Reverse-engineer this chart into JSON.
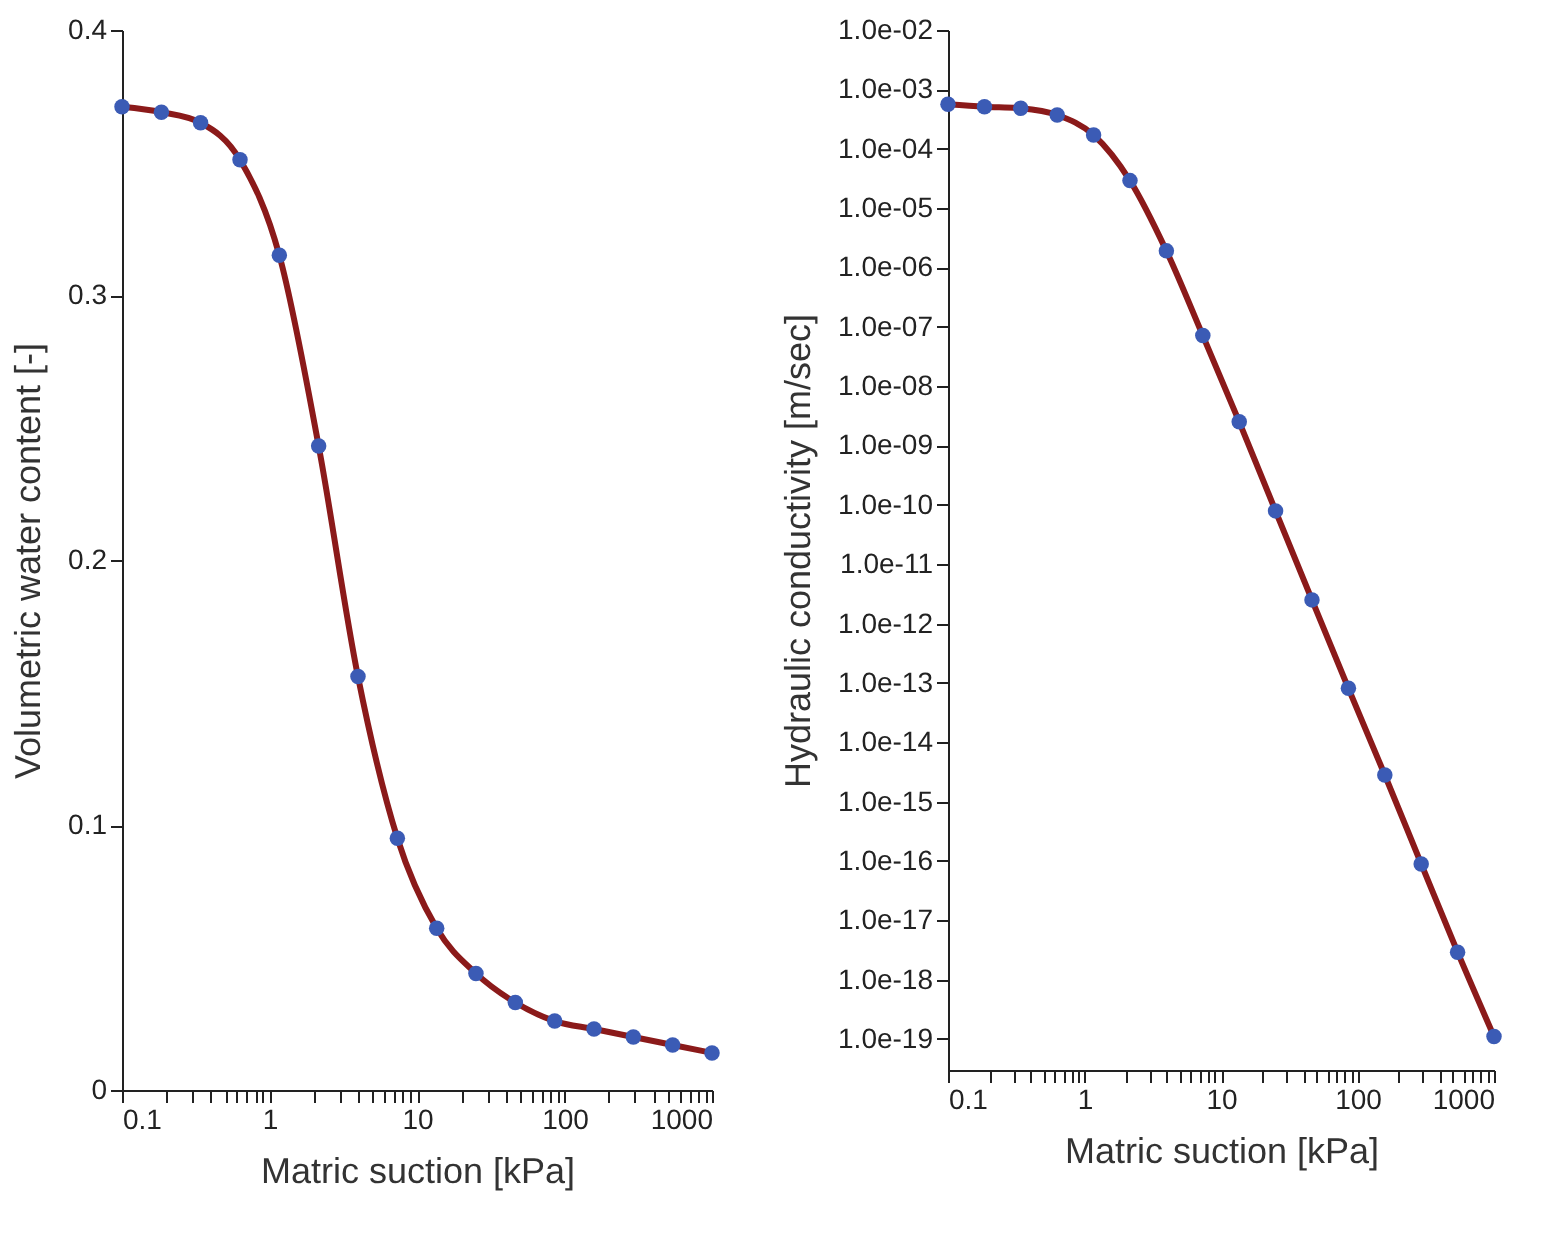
{
  "chart_data": [
    {
      "type": "line",
      "xlabel": "Matric suction [kPa]",
      "ylabel": "Volumetric water content [-]",
      "log": "x",
      "x": [
        0.1,
        0.185,
        0.341,
        0.631,
        1.166,
        2.154,
        3.98,
        7.36,
        13.6,
        25.1,
        46.4,
        85.8,
        158.5,
        292.9,
        541,
        1000
      ],
      "series": [
        {
          "color": "#8b1a1a",
          "values": [
            0.371,
            0.369,
            0.365,
            0.351,
            0.315,
            0.243,
            0.156,
            0.095,
            0.061,
            0.044,
            0.033,
            0.026,
            0.023,
            0.02,
            0.017,
            0.014
          ]
        },
        {
          "type": "scatter",
          "color": "#3b5bb5",
          "values": [
            0.371,
            0.369,
            0.365,
            0.351,
            0.315,
            0.243,
            0.156,
            0.095,
            0.061,
            0.044,
            0.033,
            0.026,
            0.023,
            0.02,
            0.017,
            0.014
          ]
        }
      ],
      "xlim": [
        0.1,
        1000
      ],
      "xticks": [
        0.1,
        {
          "value": 0.2,
          "label": null
        },
        {
          "value": 0.3,
          "label": null
        },
        {
          "value": 0.4,
          "label": null
        },
        {
          "value": 0.5,
          "label": null
        },
        {
          "value": 0.6,
          "label": null
        },
        {
          "value": 0.7,
          "label": null
        },
        {
          "value": 0.8,
          "label": null
        },
        {
          "value": 0.9,
          "label": null
        },
        1,
        {
          "value": 2,
          "label": null
        },
        {
          "value": 3,
          "label": null
        },
        {
          "value": 4,
          "label": null
        },
        {
          "value": 5,
          "label": null
        },
        {
          "value": 6,
          "label": null
        },
        {
          "value": 7,
          "label": null
        },
        {
          "value": 8,
          "label": null
        },
        {
          "value": 9,
          "label": null
        },
        10,
        {
          "value": 20,
          "label": null
        },
        {
          "value": 30,
          "label": null
        },
        {
          "value": 40,
          "label": null
        },
        {
          "value": 50,
          "label": null
        },
        {
          "value": 60,
          "label": null
        },
        {
          "value": 70,
          "label": null
        },
        {
          "value": 80,
          "label": null
        },
        {
          "value": 90,
          "label": null
        },
        100,
        {
          "value": 200,
          "label": null
        },
        {
          "value": 300,
          "label": null
        },
        {
          "value": 400,
          "label": null
        },
        {
          "value": 500,
          "label": null
        },
        {
          "value": 600,
          "label": null
        },
        {
          "value": 700,
          "label": null
        },
        {
          "value": 800,
          "label": null
        },
        {
          "value": 900,
          "label": null
        },
        1000
      ],
      "ylim": [
        0,
        0.4
      ],
      "yticks": [
        0,
        0.1,
        0.2,
        0.3,
        0.4
      ]
    },
    {
      "type": "line",
      "xlabel": "Matric suction [kPa]",
      "ylabel": "Hydraulic conductivity [m/sec]",
      "log": "xy",
      "x": [
        0.1,
        0.185,
        0.341,
        0.631,
        1.166,
        2.154,
        3.98,
        7.36,
        13.6,
        25.1,
        46.4,
        85.8,
        158.5,
        292.9,
        541,
        1000
      ],
      "series": [
        {
          "color": "#8b1a1a",
          "values": [
            0.00056,
            0.00051,
            0.00048,
            0.00037,
            0.00017,
            2.9e-05,
            1.9e-06,
            7.1e-08,
            2.5e-09,
            7.9e-11,
            2.5e-12,
            8.1e-14,
            2.8e-15,
            8.9e-17,
            2.9e-18,
            1.1e-19
          ]
        },
        {
          "type": "scatter",
          "color": "#3b5bb5",
          "values": [
            0.00056,
            0.00051,
            0.00048,
            0.00037,
            0.00017,
            2.9e-05,
            1.9e-06,
            7.1e-08,
            2.5e-09,
            7.9e-11,
            2.5e-12,
            8.1e-14,
            2.8e-15,
            8.9e-17,
            2.9e-18,
            1.1e-19
          ]
        }
      ],
      "xlim": [
        0.1,
        1000
      ],
      "xticks": [
        0.1,
        {
          "value": 0.2,
          "label": null
        },
        {
          "value": 0.3,
          "label": null
        },
        {
          "value": 0.4,
          "label": null
        },
        {
          "value": 0.5,
          "label": null
        },
        {
          "value": 0.6,
          "label": null
        },
        {
          "value": 0.7,
          "label": null
        },
        {
          "value": 0.8,
          "label": null
        },
        {
          "value": 0.9,
          "label": null
        },
        1,
        {
          "value": 2,
          "label": null
        },
        {
          "value": 3,
          "label": null
        },
        {
          "value": 4,
          "label": null
        },
        {
          "value": 5,
          "label": null
        },
        {
          "value": 6,
          "label": null
        },
        {
          "value": 7,
          "label": null
        },
        {
          "value": 8,
          "label": null
        },
        {
          "value": 9,
          "label": null
        },
        10,
        {
          "value": 20,
          "label": null
        },
        {
          "value": 30,
          "label": null
        },
        {
          "value": 40,
          "label": null
        },
        {
          "value": 50,
          "label": null
        },
        {
          "value": 60,
          "label": null
        },
        {
          "value": 70,
          "label": null
        },
        {
          "value": 80,
          "label": null
        },
        {
          "value": 90,
          "label": null
        },
        100,
        {
          "value": 200,
          "label": null
        },
        {
          "value": 300,
          "label": null
        },
        {
          "value": 400,
          "label": null
        },
        {
          "value": 500,
          "label": null
        },
        {
          "value": 600,
          "label": null
        },
        {
          "value": 700,
          "label": null
        },
        {
          "value": 800,
          "label": null
        },
        {
          "value": 900,
          "label": null
        },
        1000
      ],
      "ylim": [
        3e-20,
        0.01
      ],
      "yticks": [
        {
          "value": 0.01,
          "label": "1.0e-02"
        },
        {
          "value": 0.001,
          "label": "1.0e-03"
        },
        {
          "value": 0.0001,
          "label": "1.0e-04"
        },
        {
          "value": 1e-05,
          "label": "1.0e-05"
        },
        {
          "value": 1e-06,
          "label": "1.0e-06"
        },
        {
          "value": 1e-07,
          "label": "1.0e-07"
        },
        {
          "value": 1e-08,
          "label": "1.0e-08"
        },
        {
          "value": 1e-09,
          "label": "1.0e-09"
        },
        {
          "value": 1e-10,
          "label": "1.0e-10"
        },
        {
          "value": 1e-11,
          "label": "1.0e-11"
        },
        {
          "value": 1e-12,
          "label": "1.0e-12"
        },
        {
          "value": 1e-13,
          "label": "1.0e-13"
        },
        {
          "value": 1e-14,
          "label": "1.0e-14"
        },
        {
          "value": 1e-15,
          "label": "1.0e-15"
        },
        {
          "value": 1e-16,
          "label": "1.0e-16"
        },
        {
          "value": 1e-17,
          "label": "1.0e-17"
        },
        {
          "value": 1e-18,
          "label": "1.0e-18"
        },
        {
          "value": 1e-19,
          "label": "1.0e-19"
        }
      ]
    }
  ]
}
